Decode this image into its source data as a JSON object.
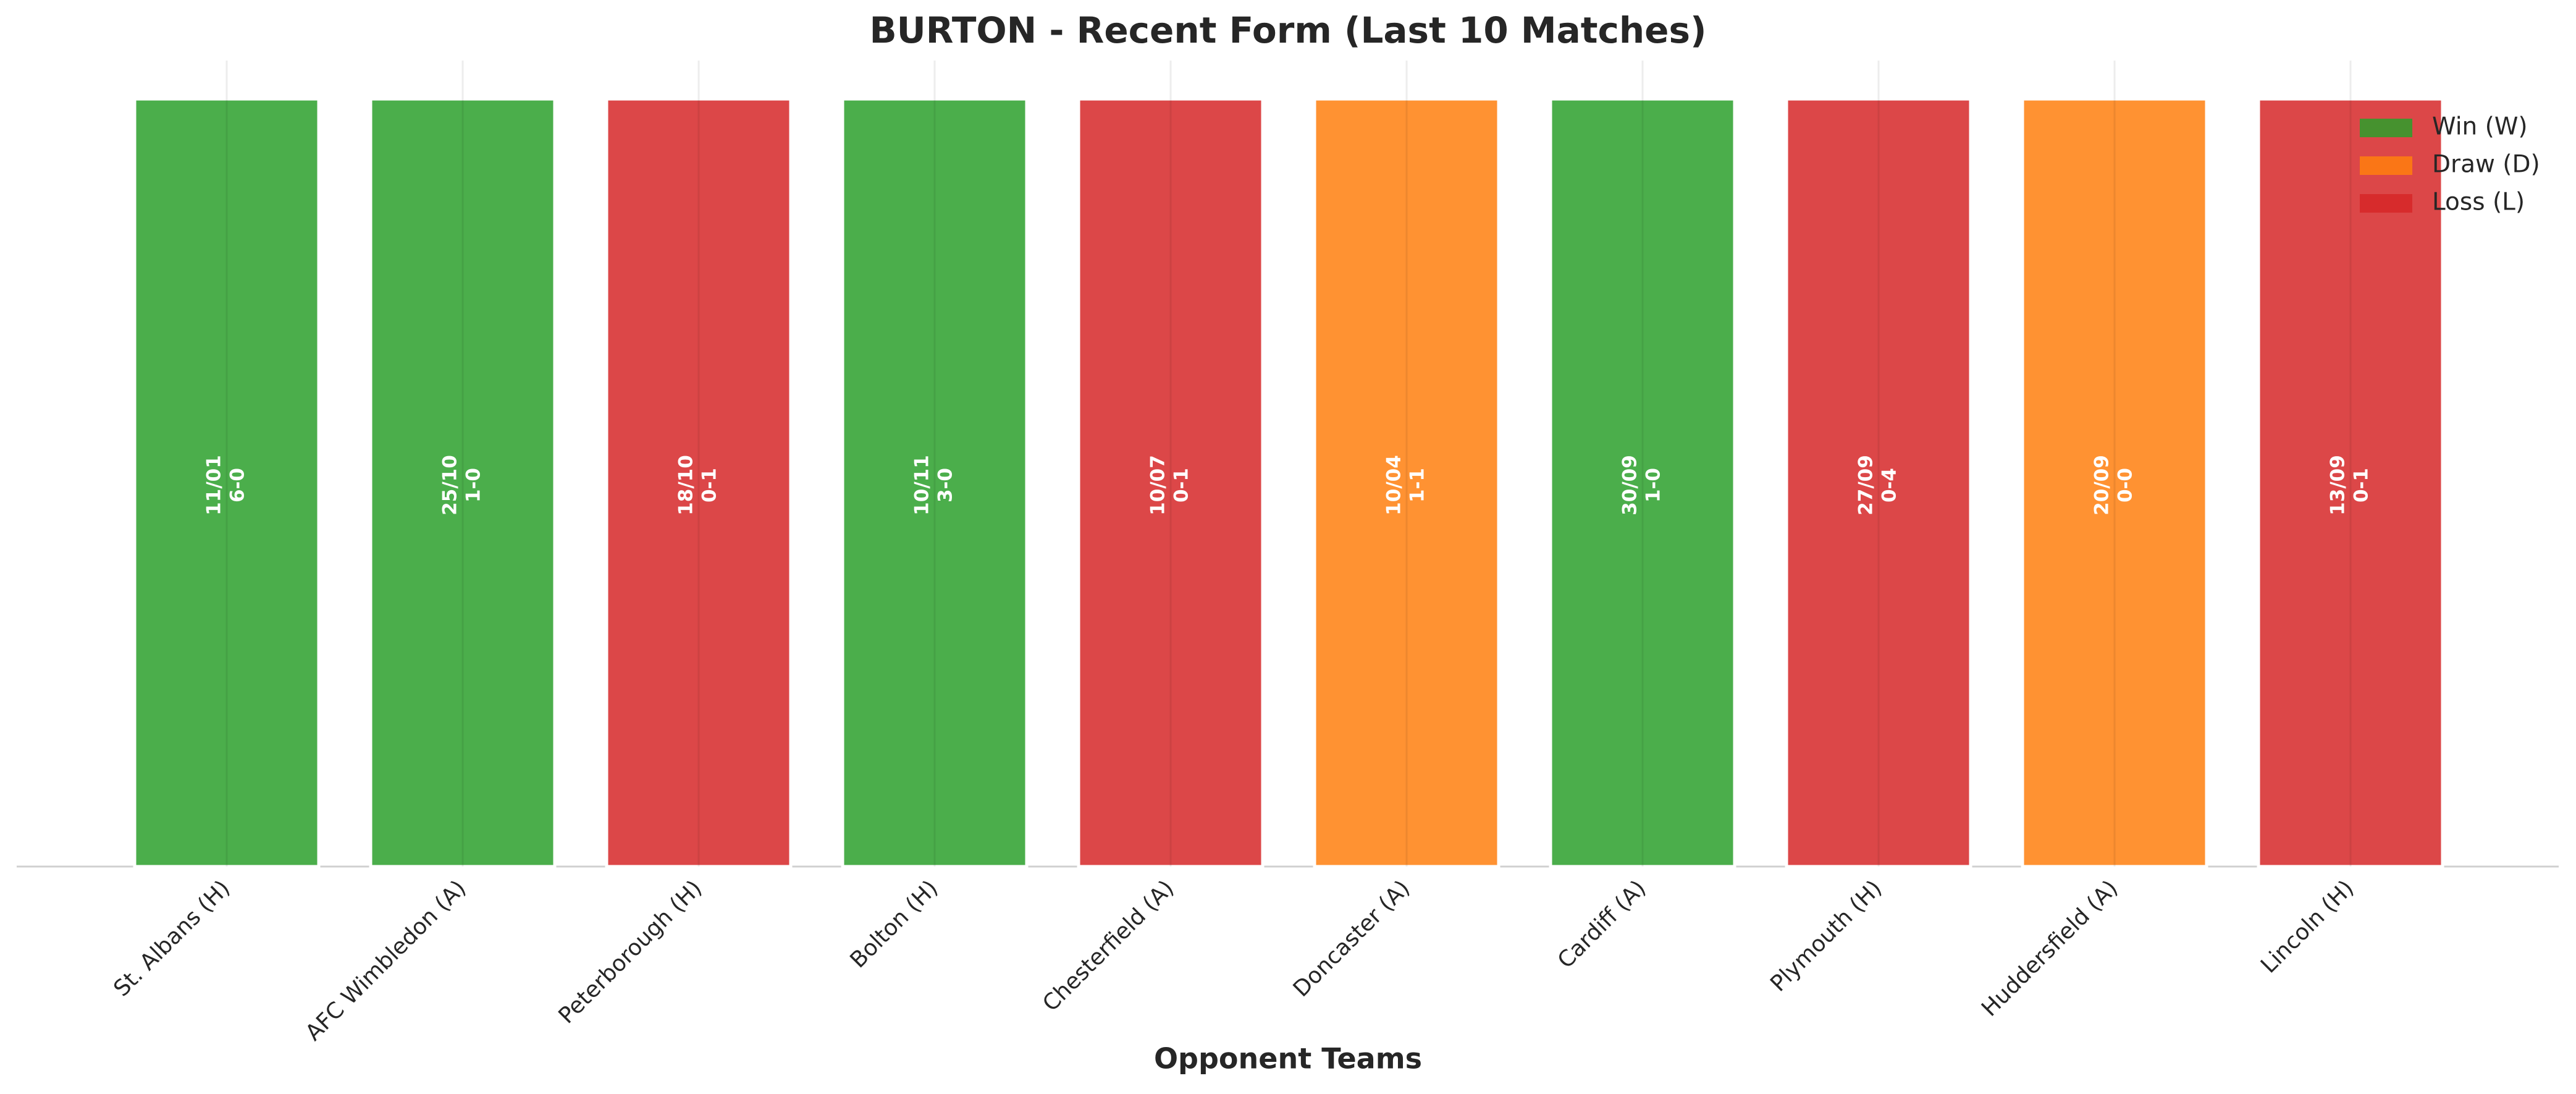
{
  "chart_data": {
    "type": "bar",
    "title": "BURTON - Recent Form (Last 10 Matches)",
    "x_label": "Opponent Teams",
    "categories": [
      "St. Albans (H)",
      "AFC Wimbledon (A)",
      "Peterborough (H)",
      "Bolton (H)",
      "Chesterfield (A)",
      "Doncaster (A)",
      "Cardiff (A)",
      "Plymouth (H)",
      "Huddersfield (A)",
      "Lincoln (H)"
    ],
    "dates": [
      "11/01",
      "25/10",
      "18/10",
      "10/11",
      "10/07",
      "10/04",
      "30/09",
      "27/09",
      "20/09",
      "13/09"
    ],
    "scores": [
      "6-0",
      "1-0",
      "0-1",
      "3-0",
      "0-1",
      "1-1",
      "1-0",
      "0-4",
      "0-0",
      "0-1"
    ],
    "series": [
      {
        "name": "Win (W)",
        "color": "#2ca02c",
        "values": [
          1,
          1,
          null,
          1,
          null,
          null,
          1,
          null,
          null,
          null
        ]
      },
      {
        "name": "Draw (D)",
        "color": "#ff7f0e",
        "values": [
          null,
          null,
          null,
          null,
          null,
          1,
          null,
          null,
          1,
          null
        ]
      },
      {
        "name": "Loss (L)",
        "color": "#d62728",
        "values": [
          null,
          null,
          1,
          null,
          1,
          null,
          null,
          1,
          null,
          1
        ]
      }
    ],
    "ylim": [
      0,
      1.05
    ],
    "legend": "upper right"
  }
}
